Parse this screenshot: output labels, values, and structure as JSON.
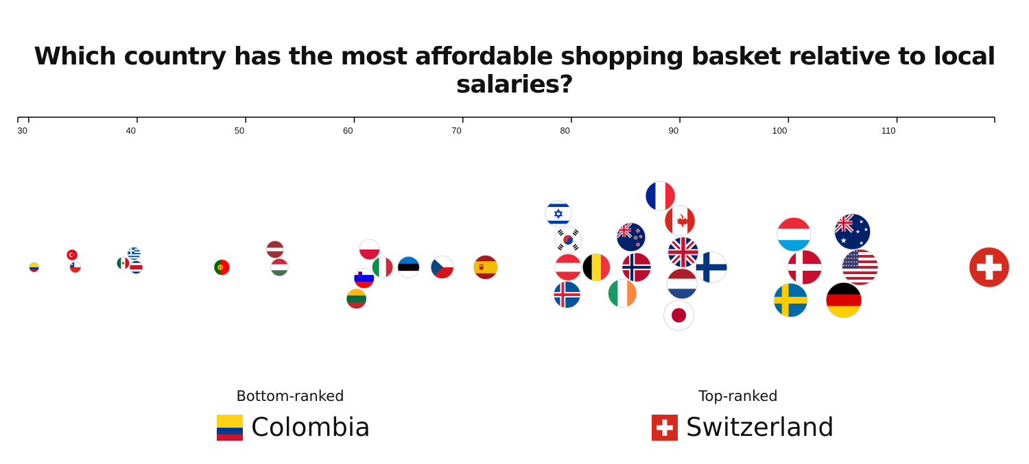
{
  "title": "Which country has the most affordable shopping basket relative to local salaries?",
  "chart_data": {
    "type": "scatter",
    "title": "Which country has the most affordable shopping basket relative to local salaries?",
    "xlim": [
      29,
      119
    ],
    "x_ticks": [
      30,
      40,
      50,
      60,
      70,
      80,
      90,
      100,
      110
    ],
    "points": [
      {
        "country": "Colombia",
        "flag": "colombia",
        "value": 30.5
      },
      {
        "country": "Chile",
        "flag": "chile",
        "value": 34.3
      },
      {
        "country": "Turkey",
        "flag": "turkey",
        "value": 34.0
      },
      {
        "country": "Greece",
        "flag": "greece",
        "value": 39.7
      },
      {
        "country": "Mexico",
        "flag": "mexico",
        "value": 38.7
      },
      {
        "country": "Costa Rica",
        "flag": "costa-rica",
        "value": 39.9
      },
      {
        "country": "Portugal",
        "flag": "portugal",
        "value": 47.8
      },
      {
        "country": "Latvia",
        "flag": "latvia",
        "value": 52.7
      },
      {
        "country": "Hungary",
        "flag": "hungary",
        "value": 53.1
      },
      {
        "country": "Slovenia",
        "flag": "slovenia",
        "value": 60.9
      },
      {
        "country": "Poland",
        "flag": "poland",
        "value": 61.4
      },
      {
        "country": "Lithuania",
        "flag": "lithuania",
        "value": 60.2
      },
      {
        "country": "Italy",
        "flag": "italy",
        "value": 62.6
      },
      {
        "country": "Estonia",
        "flag": "estonia",
        "value": 65.0
      },
      {
        "country": "Czech Republic",
        "flag": "czechia",
        "value": 68.1
      },
      {
        "country": "Spain",
        "flag": "spain",
        "value": 72.1
      },
      {
        "country": "Iceland",
        "flag": "iceland",
        "value": 79.6
      },
      {
        "country": "Israel",
        "flag": "israel",
        "value": 78.8
      },
      {
        "country": "Austria",
        "flag": "austria",
        "value": 79.7
      },
      {
        "country": "South Korea",
        "flag": "south-korea",
        "value": 79.7
      },
      {
        "country": "Belgium",
        "flag": "belgium",
        "value": 82.3
      },
      {
        "country": "Ireland",
        "flag": "ireland",
        "value": 84.7
      },
      {
        "country": "Norway",
        "flag": "norway",
        "value": 86.0
      },
      {
        "country": "New Zealand",
        "flag": "new-zealand",
        "value": 85.5
      },
      {
        "country": "France",
        "flag": "france",
        "value": 88.2
      },
      {
        "country": "United Kingdom",
        "flag": "uk",
        "value": 90.3
      },
      {
        "country": "Japan",
        "flag": "japan",
        "value": 89.9
      },
      {
        "country": "Netherlands",
        "flag": "netherlands",
        "value": 90.2
      },
      {
        "country": "Canada",
        "flag": "canada",
        "value": 90.0
      },
      {
        "country": "Finland",
        "flag": "finland",
        "value": 92.9
      },
      {
        "country": "Luxembourg",
        "flag": "luxembourg",
        "value": 100.5
      },
      {
        "country": "Denmark",
        "flag": "denmark",
        "value": 101.5
      },
      {
        "country": "Sweden",
        "flag": "sweden",
        "value": 100.2
      },
      {
        "country": "Germany",
        "flag": "germany",
        "value": 105.1
      },
      {
        "country": "Australia",
        "flag": "australia",
        "value": 105.9
      },
      {
        "country": "United States",
        "flag": "usa",
        "value": 106.6
      },
      {
        "country": "Switzerland",
        "flag": "switzerland",
        "value": 118.5
      }
    ]
  },
  "legend": {
    "bottom_caption": "Bottom-ranked",
    "bottom_country": "Colombia",
    "bottom_flag": "colombia",
    "top_caption": "Top-ranked",
    "top_country": "Switzerland",
    "top_flag": "switzerland"
  }
}
